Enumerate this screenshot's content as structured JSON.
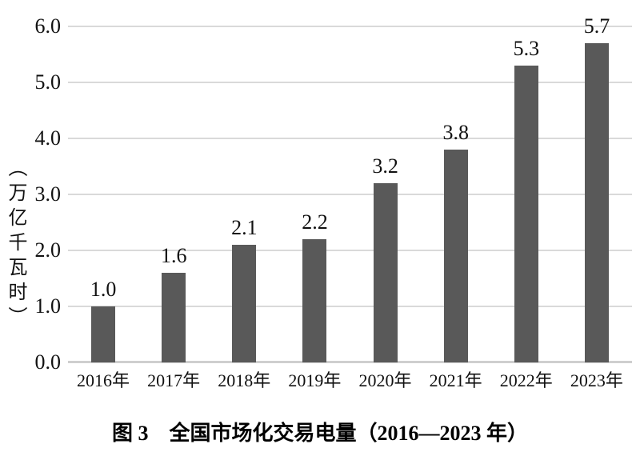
{
  "chart_data": {
    "type": "bar",
    "title": "图 3　全国市场化交易电量（2016—2023 年）",
    "ylabel": "（万亿千瓦时）",
    "xlabel": "",
    "categories": [
      "2016年",
      "2017年",
      "2018年",
      "2019年",
      "2020年",
      "2021年",
      "2022年",
      "2023年"
    ],
    "values": [
      1.0,
      1.6,
      2.1,
      2.2,
      3.2,
      3.8,
      5.3,
      5.7
    ],
    "value_labels": [
      "1.0",
      "1.6",
      "2.1",
      "2.2",
      "3.2",
      "3.8",
      "5.3",
      "5.7"
    ],
    "ylim": [
      0,
      6
    ],
    "ytick_labels": [
      "6.0",
      "5.0",
      "4.0",
      "3.0",
      "2.0",
      "1.0",
      "0.0"
    ],
    "grid": true,
    "legend": "none",
    "bar_color": "#595959",
    "grid_color": "#d9d9d9",
    "baseline_color": "#cfcfcf",
    "text_color": "#111111",
    "background_color": "#ffffff"
  }
}
